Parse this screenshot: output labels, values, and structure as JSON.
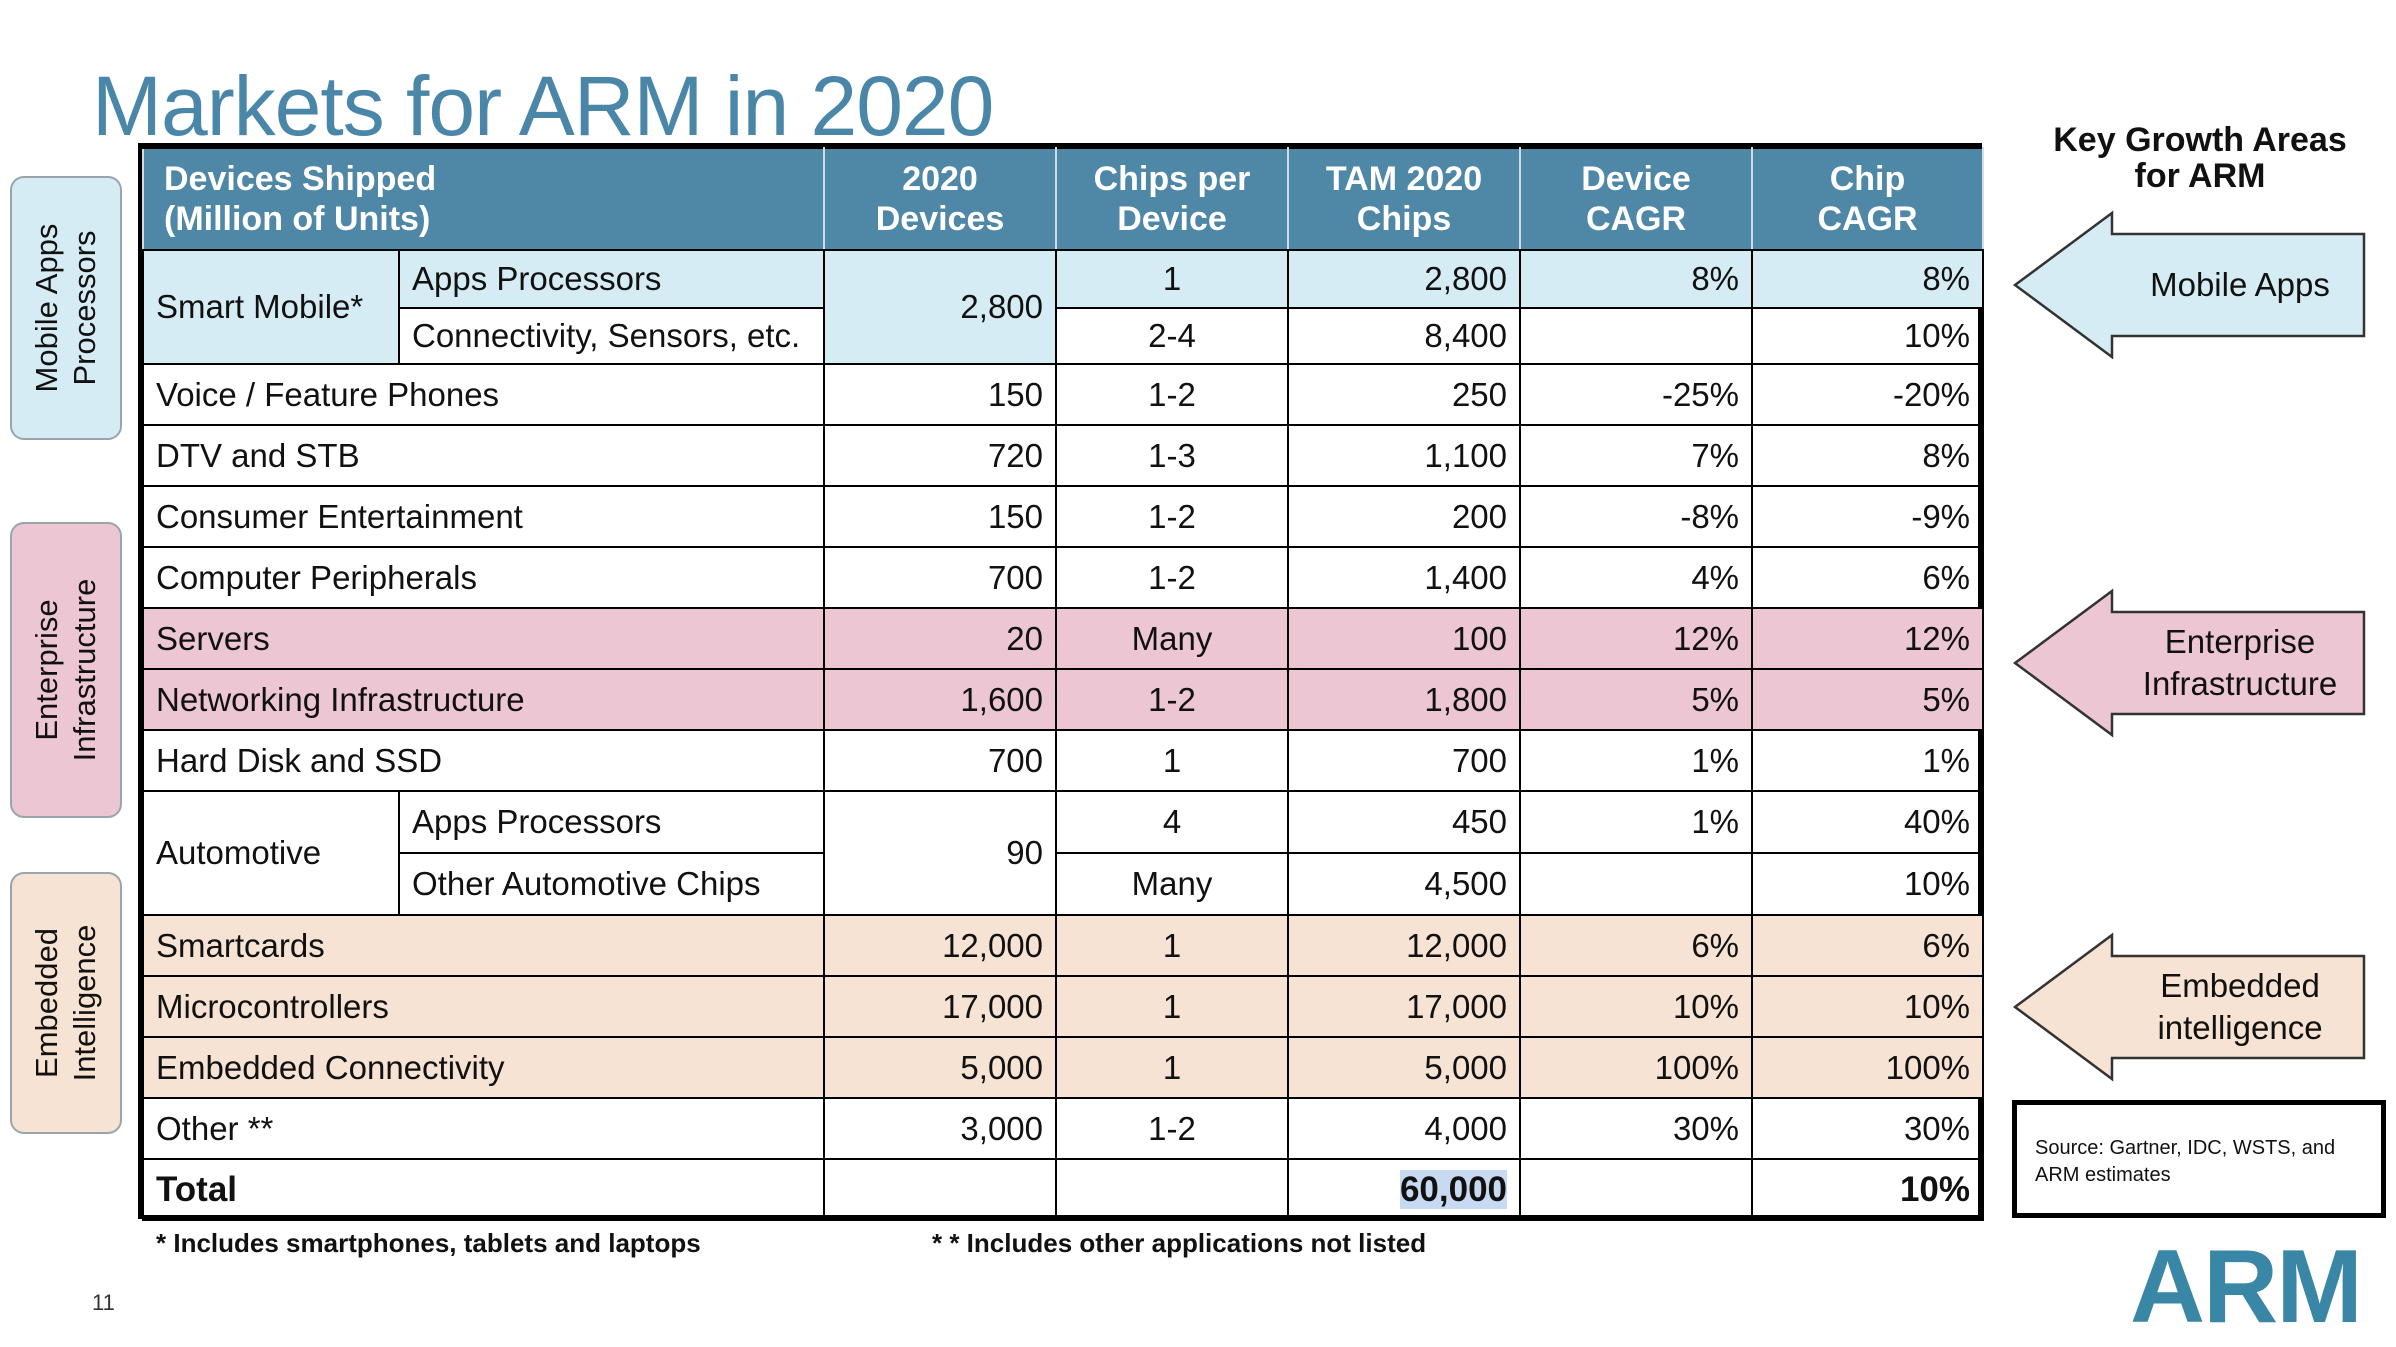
{
  "title": "Markets for ARM in 2020",
  "side_tabs": [
    {
      "line1": "Mobile Apps",
      "line2": "Processors",
      "color": "#d6ecf5"
    },
    {
      "line1": "Enterprise",
      "line2": "Infrastructure",
      "color": "#ecc7d3"
    },
    {
      "line1": "Embedded",
      "line2": "Intelligence",
      "color": "#f6e3d3"
    }
  ],
  "table": {
    "headers": {
      "devices_line1": "Devices Shipped",
      "devices_line2": "(Million of Units)",
      "c2020_line1": "2020",
      "c2020_line2": "Devices",
      "chips_line1": "Chips per",
      "chips_line2": "Device",
      "tam_line1": "TAM 2020",
      "tam_line2": "Chips",
      "dcagr_line1": "Device",
      "dcagr_line2": "CAGR",
      "ccagr_line1": "Chip",
      "ccagr_line2": "CAGR"
    },
    "smart_mobile": {
      "name": "Smart Mobile*",
      "devices": "2,800",
      "sub": [
        {
          "name": "Apps Processors",
          "chips": "1",
          "tam": "2,800",
          "dcagr": "8%",
          "ccagr": "8%"
        },
        {
          "name": "Connectivity, Sensors, etc.",
          "chips": "2-4",
          "tam": "8,400",
          "dcagr": "",
          "ccagr": "10%"
        }
      ]
    },
    "rows_a": [
      {
        "name": "Voice / Feature Phones",
        "devices": "150",
        "chips": "1-2",
        "tam": "250",
        "dcagr": "-25%",
        "ccagr": "-20%"
      },
      {
        "name": "DTV and STB",
        "devices": "720",
        "chips": "1-3",
        "tam": "1,100",
        "dcagr": "7%",
        "ccagr": "8%"
      },
      {
        "name": "Consumer Entertainment",
        "devices": "150",
        "chips": "1-2",
        "tam": "200",
        "dcagr": "-8%",
        "ccagr": "-9%"
      },
      {
        "name": "Computer Peripherals",
        "devices": "700",
        "chips": "1-2",
        "tam": "1,400",
        "dcagr": "4%",
        "ccagr": "6%"
      },
      {
        "name": "Servers",
        "devices": "20",
        "chips": "Many",
        "tam": "100",
        "dcagr": "12%",
        "ccagr": "12%"
      },
      {
        "name": "Networking Infrastructure",
        "devices": "1,600",
        "chips": "1-2",
        "tam": "1,800",
        "dcagr": "5%",
        "ccagr": "5%"
      },
      {
        "name": "Hard Disk and SSD",
        "devices": "700",
        "chips": "1",
        "tam": "700",
        "dcagr": "1%",
        "ccagr": "1%"
      }
    ],
    "automotive": {
      "name": "Automotive",
      "devices": "90",
      "sub": [
        {
          "name": "Apps Processors",
          "chips": "4",
          "tam": "450",
          "dcagr": "1%",
          "ccagr": "40%"
        },
        {
          "name": "Other Automotive Chips",
          "chips": "Many",
          "tam": "4,500",
          "dcagr": "",
          "ccagr": "10%"
        }
      ]
    },
    "rows_b": [
      {
        "name": "Smartcards",
        "devices": "12,000",
        "chips": "1",
        "tam": "12,000",
        "dcagr": "6%",
        "ccagr": "6%"
      },
      {
        "name": "Microcontrollers",
        "devices": "17,000",
        "chips": "1",
        "tam": "17,000",
        "dcagr": "10%",
        "ccagr": "10%"
      },
      {
        "name": "Embedded Connectivity",
        "devices": "5,000",
        "chips": "1",
        "tam": "5,000",
        "dcagr": "100%",
        "ccagr": "100%"
      },
      {
        "name": "Other **",
        "devices": "3,000",
        "chips": "1-2",
        "tam": "4,000",
        "dcagr": "30%",
        "ccagr": "30%"
      }
    ],
    "total": {
      "label": "Total",
      "tam": "60,000",
      "ccagr": "10%"
    }
  },
  "key_growth": {
    "title_line1": "Key Growth Areas",
    "title_line2": "for ARM",
    "arrows": [
      {
        "line1": "Mobile Apps",
        "line2": "",
        "fill": "#d6ecf5"
      },
      {
        "line1": "Enterprise",
        "line2": "Infrastructure",
        "fill": "#ecc7d3"
      },
      {
        "line1": "Embedded",
        "line2": "intelligence",
        "fill": "#f6e3d3"
      }
    ]
  },
  "source": "Source: Gartner, IDC, WSTS, and ARM estimates",
  "footnotes": {
    "note1": "* Includes smartphones, tablets and laptops",
    "note2": "* * Includes other applications not listed"
  },
  "logo": "ARM",
  "page_number": "11"
}
